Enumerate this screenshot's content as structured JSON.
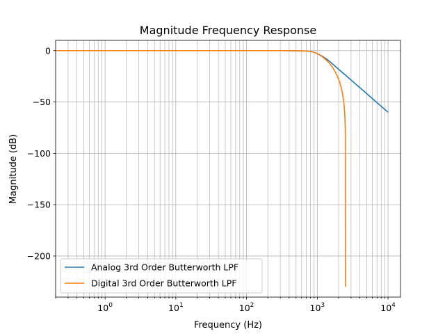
{
  "chart_data": {
    "type": "line",
    "title": "Magnitude Frequency Response",
    "xlabel": "Frequency (Hz)",
    "ylabel": "Magnitude (dB)",
    "xscale": "log",
    "xlim": [
      0.2,
      15000
    ],
    "ylim": [
      -240,
      10
    ],
    "grid": "both",
    "legend": "lower-left",
    "x_ticks": [
      {
        "value": 1,
        "base": "10",
        "exp": "0"
      },
      {
        "value": 10,
        "base": "10",
        "exp": "1"
      },
      {
        "value": 100,
        "base": "10",
        "exp": "2"
      },
      {
        "value": 1000,
        "base": "10",
        "exp": "3"
      },
      {
        "value": 10000,
        "base": "10",
        "exp": "4"
      }
    ],
    "y_ticks": [
      {
        "value": 0,
        "label": "0"
      },
      {
        "value": -50,
        "label": "−50"
      },
      {
        "value": -100,
        "label": "−100"
      },
      {
        "value": -150,
        "label": "−150"
      },
      {
        "value": -200,
        "label": "−200"
      }
    ],
    "series": [
      {
        "name": "Analog 3rd Order Butterworth LPF",
        "color": "#1f77b4",
        "x": [
          0.2,
          1,
          10,
          100,
          300,
          500,
          700,
          800,
          900,
          1000,
          1100,
          1200,
          1400,
          1600,
          2000,
          2500,
          3000,
          4000,
          5000,
          7000,
          10000
        ],
        "y": [
          0,
          0,
          0,
          0,
          0,
          -0.1,
          -0.4,
          -0.8,
          -1.6,
          -3.0,
          -4.4,
          -5.8,
          -9.0,
          -12.3,
          -18.1,
          -23.9,
          -28.6,
          -36.1,
          -41.9,
          -50.7,
          -60.0
        ]
      },
      {
        "name": "Digital 3rd Order Butterworth LPF",
        "color": "#ff7f0e",
        "x": [
          0.2,
          1,
          10,
          100,
          300,
          500,
          700,
          800,
          900,
          1000,
          1100,
          1200,
          1300,
          1400,
          1500,
          1600,
          1700,
          1800,
          1900,
          2000,
          2100,
          2200,
          2300,
          2350,
          2400,
          2430,
          2460,
          2480,
          2490,
          2500
        ],
        "y": [
          0,
          0,
          0,
          0,
          0,
          -0.1,
          -0.4,
          -0.8,
          -1.6,
          -3.0,
          -4.6,
          -6.4,
          -8.4,
          -10.5,
          -12.8,
          -15.3,
          -18.0,
          -21.0,
          -24.3,
          -28.0,
          -32.2,
          -37.2,
          -44.0,
          -48.5,
          -54.5,
          -59.5,
          -66.5,
          -74.5,
          -82,
          -230
        ]
      }
    ]
  }
}
